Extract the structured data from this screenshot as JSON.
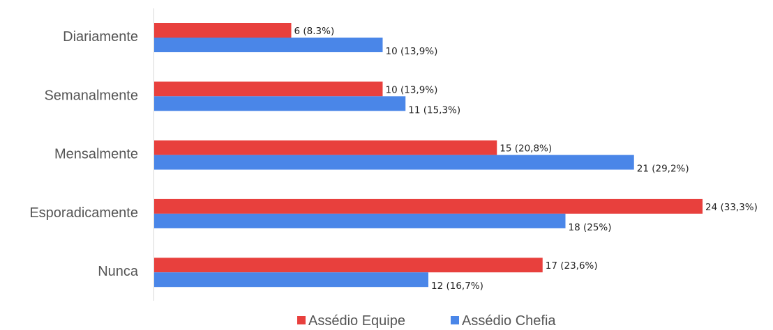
{
  "chart_data": {
    "type": "bar",
    "orientation": "horizontal",
    "categories": [
      "Diariamente",
      "Semanalmente",
      "Mensalmente",
      "Esporadicamente",
      "Nunca"
    ],
    "series": [
      {
        "name": "Assédio Equipe",
        "color": "#e8403d",
        "values": [
          6,
          10,
          15,
          24,
          17
        ],
        "labels": [
          "6 (8.3%)",
          "10 (13,9%)",
          "15 (20,8%)",
          "24 (33,3%)",
          "17 (23,6%)"
        ]
      },
      {
        "name": "Assédio Chefia",
        "color": "#4a86e8",
        "values": [
          10,
          11,
          21,
          18,
          12
        ],
        "labels": [
          "10 (13,9%)",
          "11 (15,3%)",
          "21 (29,2%)",
          "18 (25%)",
          "12 (16,7%)"
        ]
      }
    ],
    "xlim": [
      0,
      24
    ],
    "grid": false,
    "legend_position": "bottom"
  }
}
